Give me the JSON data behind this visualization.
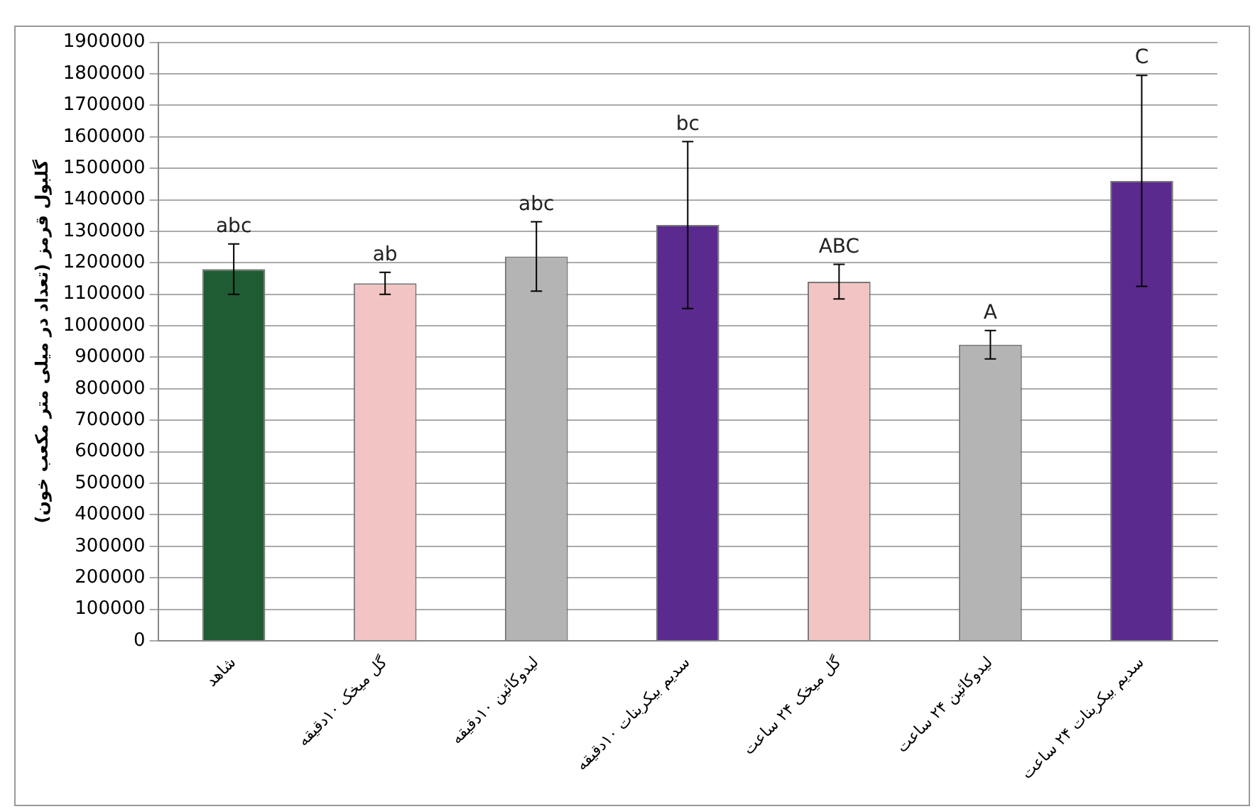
{
  "chart_data": {
    "type": "bar",
    "ylabel": "گلبول قرمز (تعداد در میلی متر مکعب خون)",
    "categories": [
      "شاهد",
      "گل میخک ۱۰دقیقه",
      "لیدوکائین ۱۰دقیقه",
      "سدیم بیکربنات ۱۰دقیقه",
      "گل میخک ۲۴ ساعت",
      "لیدوکائین ۲۴ ساعت",
      "سدیم بیکربنات ۲۴ ساعت"
    ],
    "values": [
      1180000,
      1135000,
      1220000,
      1320000,
      1140000,
      940000,
      1460000
    ],
    "errors": [
      80000,
      35000,
      110000,
      265000,
      55000,
      45000,
      335000
    ],
    "colors": [
      "#1f5c34",
      "#f2c4c4",
      "#b4b4b4",
      "#5a2a8e",
      "#f2c4c4",
      "#b4b4b4",
      "#5a2a8e"
    ],
    "ylim": [
      0,
      1900000
    ],
    "yticks": [
      0,
      100000,
      200000,
      300000,
      400000,
      500000,
      600000,
      700000,
      800000,
      900000,
      1000000,
      1100000,
      1200000,
      1300000,
      1400000,
      1500000,
      1600000,
      1700000,
      1800000,
      1900000
    ],
    "grid": "y",
    "legend": false,
    "annotations": [
      {
        "text": "abc",
        "x": "شاهد",
        "y": 1260000
      },
      {
        "text": "ab",
        "x": "گل میخک ۱۰دقیقه",
        "y": 1170000
      },
      {
        "text": "abc",
        "x": "لیدوکائین ۱۰دقیقه",
        "y": 1330000
      },
      {
        "text": "bc",
        "x": "سدیم بیکربنات ۱۰دقیقه",
        "y": 1585000
      },
      {
        "text": "ABC",
        "x": "گل میخک ۲۴ ساعت",
        "y": 1195000
      },
      {
        "text": "A",
        "x": "لیدوکائین ۲۴ ساعت",
        "y": 985000
      },
      {
        "text": "C",
        "x": "سدیم بیکربنات ۲۴ ساعت",
        "y": 1795000
      }
    ]
  }
}
